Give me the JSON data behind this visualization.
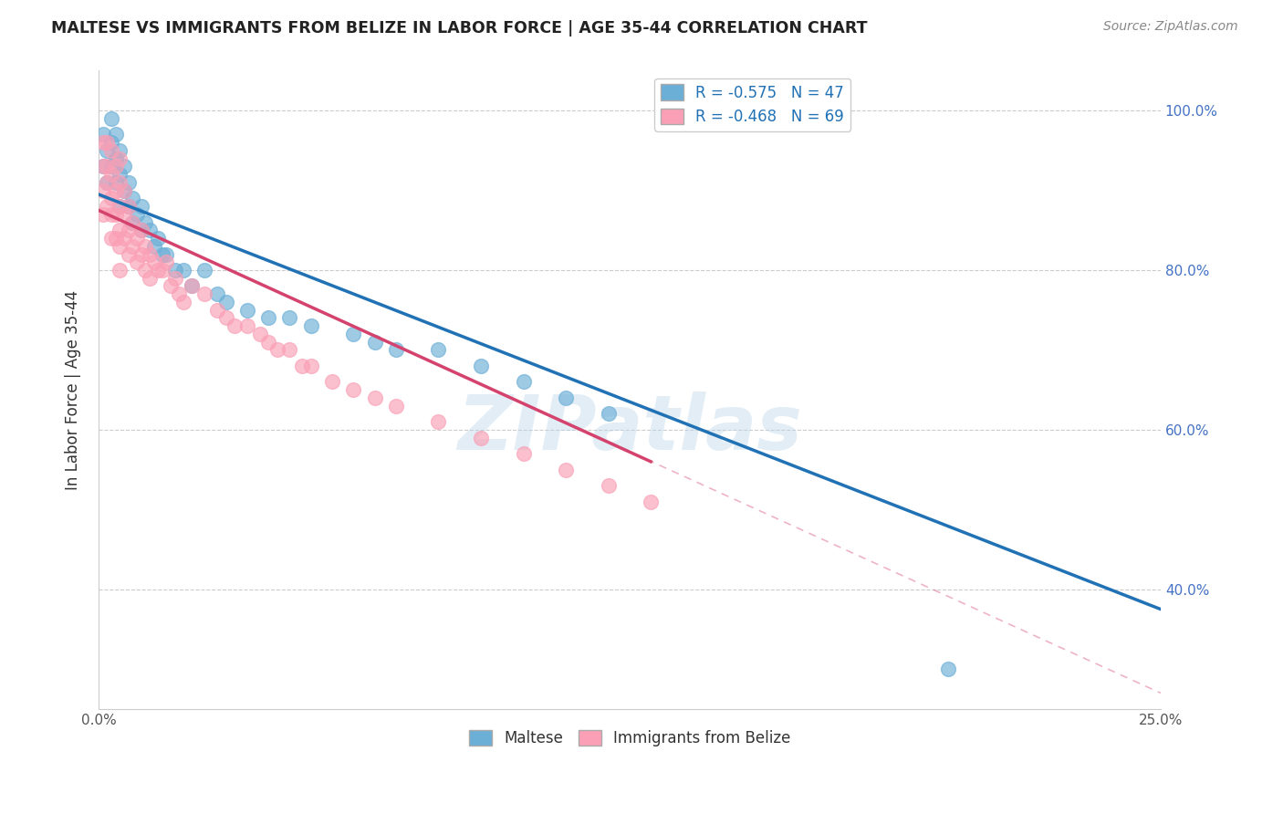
{
  "title": "MALTESE VS IMMIGRANTS FROM BELIZE IN LABOR FORCE | AGE 35-44 CORRELATION CHART",
  "source": "Source: ZipAtlas.com",
  "ylabel": "In Labor Force | Age 35-44",
  "xlim": [
    0.0,
    0.25
  ],
  "ylim": [
    0.25,
    1.05
  ],
  "right_yticks": [
    0.4,
    0.6,
    0.8,
    1.0
  ],
  "right_yticklabels": [
    "40.0%",
    "60.0%",
    "80.0%",
    "100.0%"
  ],
  "xticks": [
    0.0,
    0.05,
    0.1,
    0.15,
    0.2,
    0.25
  ],
  "xticklabels": [
    "0.0%",
    "",
    "",
    "",
    "",
    "25.0%"
  ],
  "legend_blue_label": "R = -0.575   N = 47",
  "legend_pink_label": "R = -0.468   N = 69",
  "legend_maltese": "Maltese",
  "legend_belize": "Immigrants from Belize",
  "blue_color": "#6baed6",
  "pink_color": "#fa9fb5",
  "blue_line_color": "#2171b5",
  "pink_line_color": "#d4436e",
  "watermark": "ZIPatlas",
  "blue_scatter_x": [
    0.001,
    0.001,
    0.002,
    0.002,
    0.003,
    0.003,
    0.003,
    0.004,
    0.004,
    0.004,
    0.005,
    0.005,
    0.005,
    0.006,
    0.006,
    0.007,
    0.007,
    0.008,
    0.008,
    0.009,
    0.01,
    0.01,
    0.011,
    0.012,
    0.013,
    0.014,
    0.015,
    0.016,
    0.018,
    0.02,
    0.022,
    0.025,
    0.028,
    0.03,
    0.035,
    0.04,
    0.045,
    0.05,
    0.06,
    0.065,
    0.07,
    0.08,
    0.09,
    0.1,
    0.11,
    0.12,
    0.2
  ],
  "blue_scatter_y": [
    0.97,
    0.93,
    0.95,
    0.91,
    0.99,
    0.96,
    0.93,
    0.97,
    0.94,
    0.91,
    0.95,
    0.92,
    0.88,
    0.93,
    0.9,
    0.91,
    0.88,
    0.89,
    0.86,
    0.87,
    0.88,
    0.85,
    0.86,
    0.85,
    0.83,
    0.84,
    0.82,
    0.82,
    0.8,
    0.8,
    0.78,
    0.8,
    0.77,
    0.76,
    0.75,
    0.74,
    0.74,
    0.73,
    0.72,
    0.71,
    0.7,
    0.7,
    0.68,
    0.66,
    0.64,
    0.62,
    0.3
  ],
  "pink_scatter_x": [
    0.001,
    0.001,
    0.001,
    0.001,
    0.002,
    0.002,
    0.002,
    0.002,
    0.003,
    0.003,
    0.003,
    0.003,
    0.003,
    0.004,
    0.004,
    0.004,
    0.004,
    0.005,
    0.005,
    0.005,
    0.005,
    0.005,
    0.005,
    0.006,
    0.006,
    0.006,
    0.007,
    0.007,
    0.007,
    0.008,
    0.008,
    0.009,
    0.009,
    0.01,
    0.01,
    0.011,
    0.011,
    0.012,
    0.012,
    0.013,
    0.014,
    0.015,
    0.016,
    0.017,
    0.018,
    0.019,
    0.02,
    0.022,
    0.025,
    0.028,
    0.03,
    0.032,
    0.035,
    0.038,
    0.04,
    0.042,
    0.045,
    0.048,
    0.05,
    0.055,
    0.06,
    0.065,
    0.07,
    0.08,
    0.09,
    0.1,
    0.11,
    0.12,
    0.13
  ],
  "pink_scatter_y": [
    0.96,
    0.93,
    0.9,
    0.87,
    0.96,
    0.93,
    0.91,
    0.88,
    0.95,
    0.92,
    0.89,
    0.87,
    0.84,
    0.93,
    0.9,
    0.87,
    0.84,
    0.94,
    0.91,
    0.88,
    0.85,
    0.83,
    0.8,
    0.9,
    0.87,
    0.84,
    0.88,
    0.85,
    0.82,
    0.86,
    0.83,
    0.84,
    0.81,
    0.85,
    0.82,
    0.83,
    0.8,
    0.82,
    0.79,
    0.81,
    0.8,
    0.8,
    0.81,
    0.78,
    0.79,
    0.77,
    0.76,
    0.78,
    0.77,
    0.75,
    0.74,
    0.73,
    0.73,
    0.72,
    0.71,
    0.7,
    0.7,
    0.68,
    0.68,
    0.66,
    0.65,
    0.64,
    0.63,
    0.61,
    0.59,
    0.57,
    0.55,
    0.53,
    0.51
  ],
  "blue_line_x0": 0.0,
  "blue_line_x1": 0.25,
  "blue_line_y0": 0.895,
  "blue_line_y1": 0.375,
  "pink_line_solid_x0": 0.0,
  "pink_line_solid_x1": 0.13,
  "pink_line_solid_y0": 0.875,
  "pink_line_solid_y1": 0.56,
  "pink_line_dash_x0": 0.0,
  "pink_line_dash_x1": 0.25,
  "pink_line_dash_y0": 0.875,
  "pink_line_dash_y1": 0.27
}
